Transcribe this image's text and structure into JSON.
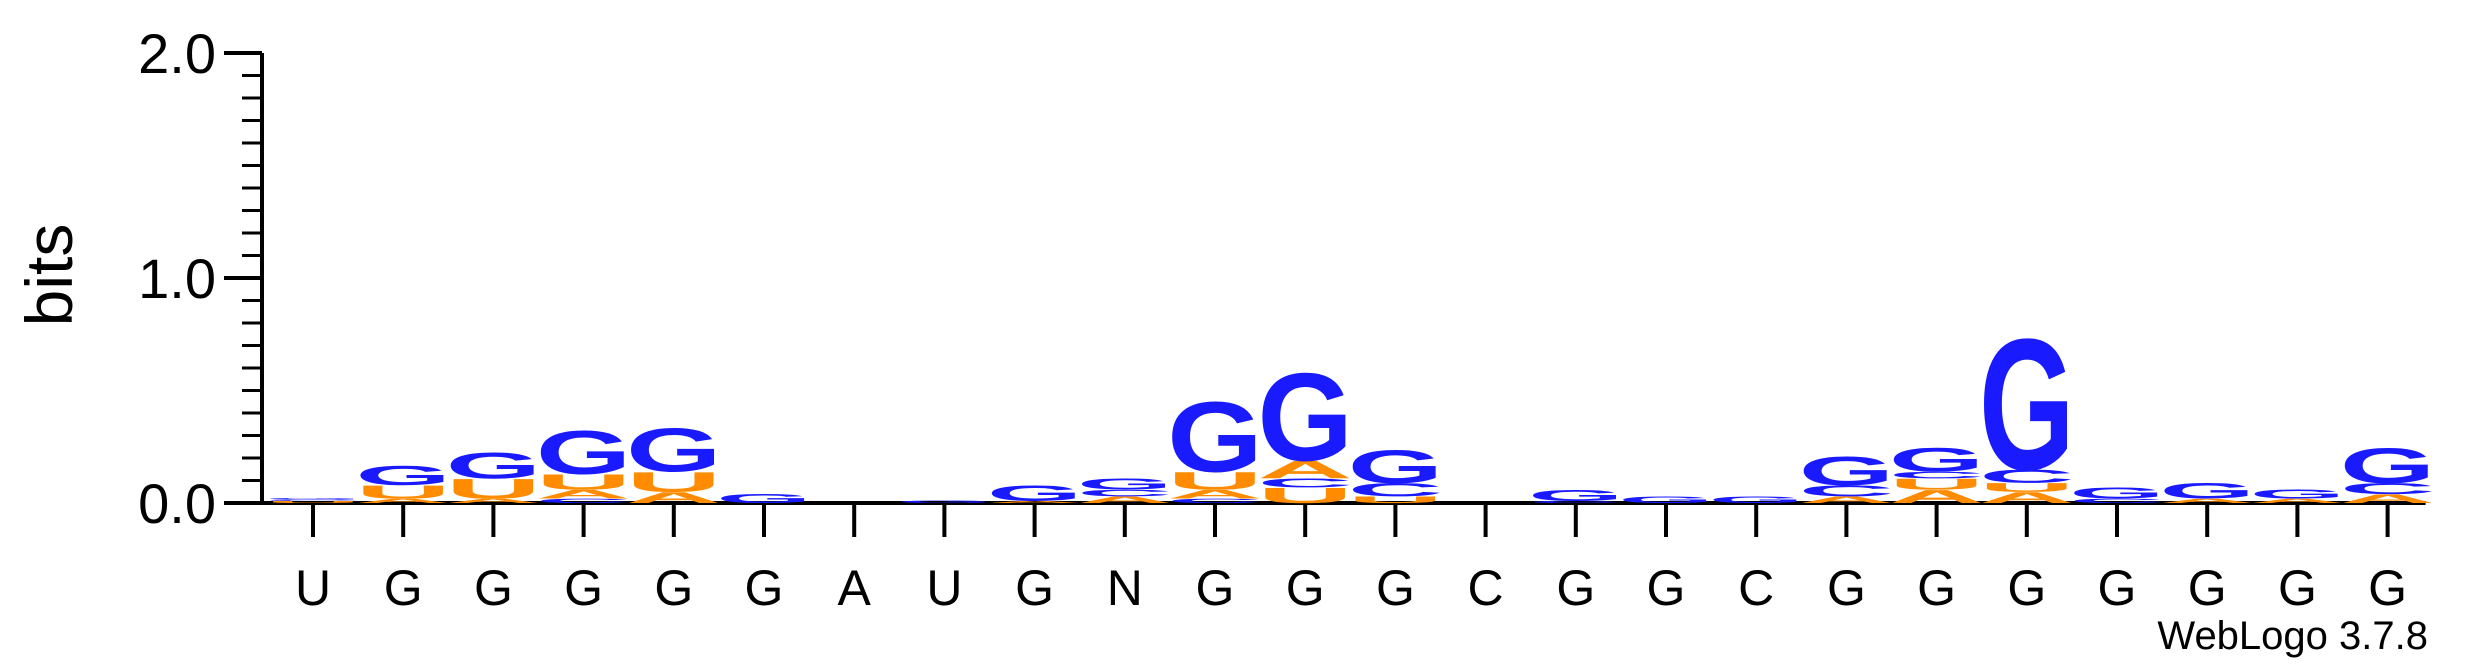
{
  "chart_data": {
    "type": "sequence-logo",
    "ylabel": "bits",
    "ylim": [
      0,
      2.0
    ],
    "yticks": [
      "0.0",
      "1.0",
      "2.0"
    ],
    "xticklabels": [
      "U",
      "G",
      "G",
      "G",
      "G",
      "G",
      "A",
      "U",
      "G",
      "N",
      "G",
      "G",
      "G",
      "C",
      "G",
      "G",
      "C",
      "G",
      "G",
      "G",
      "G",
      "G",
      "G",
      "G"
    ],
    "credit": "WebLogo 3.7.8",
    "colors": {
      "G": "#1a1aff",
      "U": "#ff8c00",
      "A": "#ff8c00",
      "C": "#1a1aff"
    },
    "stacks": [
      [
        [
          "U",
          0.01
        ],
        [
          "C",
          0.005
        ],
        [
          "G",
          0.005
        ]
      ],
      [
        [
          "A",
          0.02
        ],
        [
          "U",
          0.06
        ],
        [
          "G",
          0.09
        ]
      ],
      [
        [
          "A",
          0.02
        ],
        [
          "U",
          0.09
        ],
        [
          "G",
          0.12
        ]
      ],
      [
        [
          "C",
          0.02
        ],
        [
          "A",
          0.04
        ],
        [
          "U",
          0.07
        ],
        [
          "G",
          0.2
        ]
      ],
      [
        [
          "A",
          0.05
        ],
        [
          "U",
          0.09
        ],
        [
          "G",
          0.2
        ]
      ],
      [
        [
          "G",
          0.04
        ]
      ],
      [],
      [
        [
          "G",
          0.01
        ]
      ],
      [
        [
          "A",
          0.01
        ],
        [
          "G",
          0.07
        ]
      ],
      [
        [
          "A",
          0.03
        ],
        [
          "C",
          0.03
        ],
        [
          "G",
          0.05
        ]
      ],
      [
        [
          "C",
          0.02
        ],
        [
          "A",
          0.04
        ],
        [
          "U",
          0.08
        ],
        [
          "G",
          0.32
        ]
      ],
      [
        [
          "U",
          0.07
        ],
        [
          "C",
          0.04
        ],
        [
          "A",
          0.08
        ],
        [
          "G",
          0.4
        ]
      ],
      [
        [
          "U",
          0.03
        ],
        [
          "C",
          0.06
        ],
        [
          "G",
          0.15
        ]
      ],
      [],
      [
        [
          "C",
          0.01
        ],
        [
          "G",
          0.05
        ]
      ],
      [
        [
          "G",
          0.03
        ]
      ],
      [
        [
          "G",
          0.03
        ]
      ],
      [
        [
          "A",
          0.03
        ],
        [
          "C",
          0.05
        ],
        [
          "G",
          0.13
        ]
      ],
      [
        [
          "A",
          0.06
        ],
        [
          "U",
          0.05
        ],
        [
          "C",
          0.03
        ],
        [
          "G",
          0.11
        ]
      ],
      [
        [
          "A",
          0.05
        ],
        [
          "U",
          0.04
        ],
        [
          "C",
          0.06
        ],
        [
          "G",
          0.6
        ]
      ],
      [
        [
          "C",
          0.02
        ],
        [
          "G",
          0.05
        ]
      ],
      [
        [
          "A",
          0.02
        ],
        [
          "G",
          0.07
        ]
      ],
      [
        [
          "A",
          0.02
        ],
        [
          "G",
          0.04
        ]
      ],
      [
        [
          "A",
          0.04
        ],
        [
          "C",
          0.05
        ],
        [
          "G",
          0.16
        ]
      ]
    ]
  }
}
